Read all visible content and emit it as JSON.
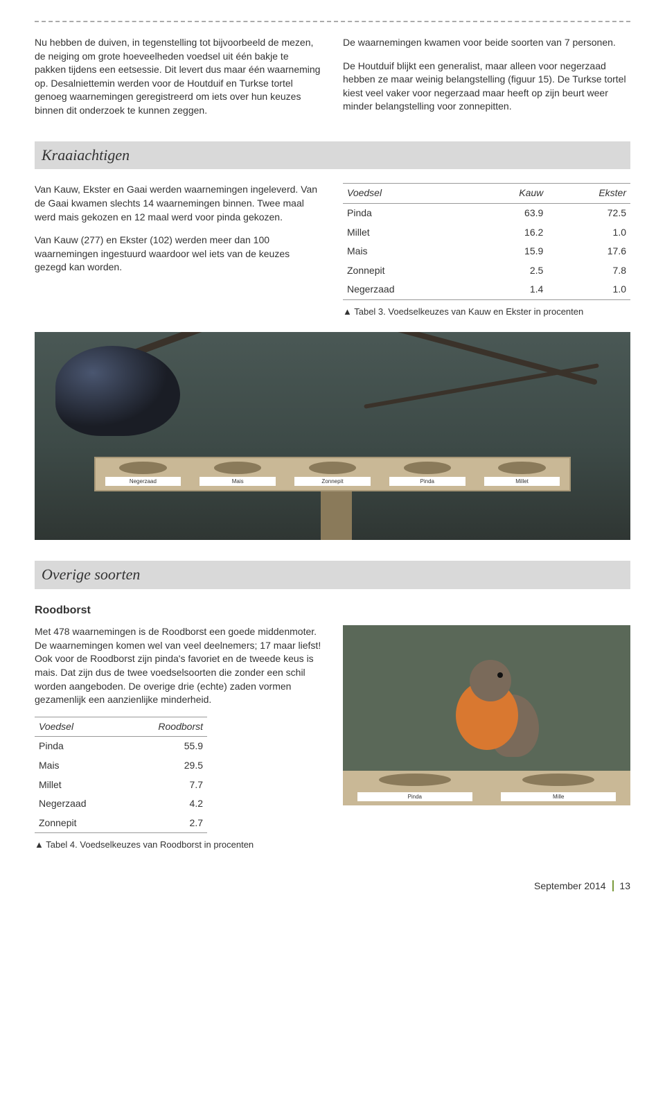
{
  "intro": {
    "left": [
      "Nu hebben de duiven, in tegenstelling tot bijvoorbeeld de mezen, de neiging om grote hoeveelheden voedsel uit één bakje te pakken tijdens een eetsessie. Dit levert dus maar één waarneming op. Desalniettemin werden voor de Houtduif en Turkse tortel genoeg waarnemingen geregistreerd om iets over hun keuzes binnen dit onderzoek te kunnen zeggen."
    ],
    "right": [
      "De waarnemingen kwamen voor beide soorten van 7 personen.",
      "De Houtduif blijkt een generalist, maar alleen voor negerzaad hebben ze maar weinig belangstelling (figuur 15). De Turkse tortel kiest veel vaker voor negerzaad maar heeft op zijn beurt weer minder belangstelling voor zonnepitten."
    ]
  },
  "kraai": {
    "heading": "Kraaiachtigen",
    "left": [
      "Van Kauw, Ekster en Gaai werden waarnemingen ingeleverd. Van de Gaai kwamen slechts 14 waarnemingen binnen. Twee maal werd mais gekozen en 12 maal werd voor pinda gekozen.",
      "Van Kauw (277) en Ekster (102) werden meer dan 100 waarnemingen ingestuurd waardoor wel iets van de keuzes gezegd kan worden."
    ],
    "table": {
      "columns": [
        "Voedsel",
        "Kauw",
        "Ekster"
      ],
      "rows": [
        [
          "Pinda",
          "63.9",
          "72.5"
        ],
        [
          "Millet",
          "16.2",
          "1.0"
        ],
        [
          "Mais",
          "15.9",
          "17.6"
        ],
        [
          "Zonnepit",
          "2.5",
          "7.8"
        ],
        [
          "Negerzaad",
          "1.4",
          "1.0"
        ]
      ]
    },
    "caption": "▲ Tabel 3. Voedselkeuzes van Kauw en Ekster in procenten"
  },
  "feeder_labels": [
    "Negerzaad",
    "Mais",
    "Zonnepit",
    "Pinda",
    "Millet"
  ],
  "overige": {
    "heading": "Overige soorten",
    "subheading": "Roodborst",
    "text": [
      "Met 478 waarnemingen is de Roodborst een goede middenmoter. De waarnemingen komen wel van veel deelnemers; 17 maar liefst! Ook voor de Roodborst zijn pinda's favoriet en de tweede keus is mais. Dat zijn dus de twee voedselsoorten die zonder een schil worden aangeboden. De overige drie (echte) zaden vormen gezamenlijk een aanzienlijke minderheid."
    ],
    "table": {
      "columns": [
        "Voedsel",
        "Roodborst"
      ],
      "rows": [
        [
          "Pinda",
          "55.9"
        ],
        [
          "Mais",
          "29.5"
        ],
        [
          "Millet",
          "7.7"
        ],
        [
          "Negerzaad",
          "4.2"
        ],
        [
          "Zonnepit",
          "2.7"
        ]
      ]
    },
    "caption": "▲ Tabel 4. Voedselkeuzes van Roodborst in procenten",
    "robin_labels": [
      "Pinda",
      "Mille"
    ]
  },
  "footer": {
    "date": "September 2014",
    "page": "13"
  },
  "colors": {
    "section_bg": "#d9d9d9",
    "accent": "#7a9a3a",
    "board": "#c9b896"
  }
}
